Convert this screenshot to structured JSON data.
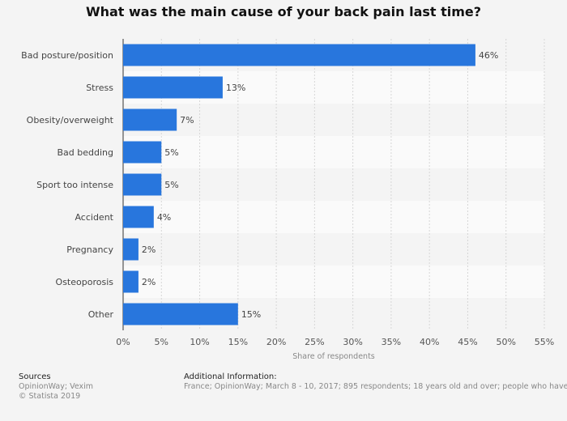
{
  "chart_data": {
    "type": "bar",
    "orientation": "horizontal",
    "title": "What was the main cause of your back pain last time?",
    "xlabel": "Share of respondents",
    "ylabel": "",
    "categories": [
      "Bad posture/position",
      "Stress",
      "Obesity/overweight",
      "Bad bedding",
      "Sport too intense",
      "Accident",
      "Pregnancy",
      "Osteoporosis",
      "Other"
    ],
    "values": [
      46,
      13,
      7,
      5,
      5,
      4,
      2,
      2,
      15
    ],
    "value_labels": [
      "46%",
      "13%",
      "7%",
      "5%",
      "5%",
      "4%",
      "2%",
      "2%",
      "15%"
    ],
    "xlim": [
      0,
      55
    ],
    "xticks": [
      0,
      5,
      10,
      15,
      20,
      25,
      30,
      35,
      40,
      45,
      50,
      55
    ],
    "xtick_labels": [
      "0%",
      "5%",
      "10%",
      "15%",
      "20%",
      "25%",
      "30%",
      "35%",
      "40%",
      "45%",
      "50%",
      "55%"
    ],
    "grid": true,
    "bar_color": "#2876dd"
  },
  "footer": {
    "sources_heading": "Sources",
    "sources_line1": "OpinionWay; Vexim",
    "sources_line2": "© Statista 2019",
    "additional_heading": "Additional Information:",
    "additional_text": "France; OpinionWay; March 8 - 10, 2017; 895 respondents; 18 years old and over; people who have had back pain"
  }
}
